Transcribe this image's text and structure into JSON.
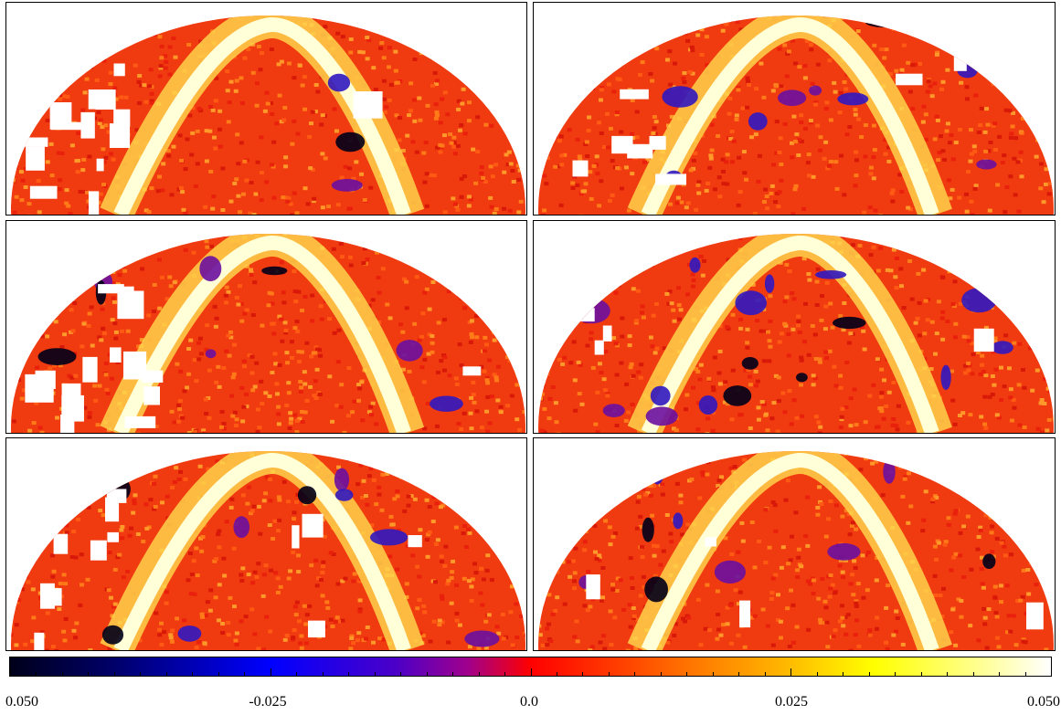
{
  "panels": [
    {
      "id": "top-left",
      "row": 1,
      "column": 1,
      "blue_patches": "few",
      "white_masked_regions": "many"
    },
    {
      "id": "top-right",
      "row": 1,
      "column": 2,
      "blue_patches": "some",
      "white_masked_regions": "some"
    },
    {
      "id": "middle-left",
      "row": 2,
      "column": 1,
      "blue_patches": "some",
      "white_masked_regions": "many"
    },
    {
      "id": "middle-right",
      "row": 2,
      "column": 2,
      "blue_patches": "many",
      "white_masked_regions": "few"
    },
    {
      "id": "bottom-left",
      "row": 3,
      "column": 1,
      "blue_patches": "some",
      "white_masked_regions": "many"
    },
    {
      "id": "bottom-right",
      "row": 3,
      "column": 2,
      "blue_patches": "some",
      "white_masked_regions": "few"
    }
  ],
  "colorbar": {
    "colors": [
      "#00001a",
      "#0000ff",
      "#a0008c",
      "#ff0000",
      "#ff7a00",
      "#ffff00",
      "#ffffff"
    ],
    "tick_labels": [
      "0.050",
      "-0.025",
      "0.0",
      "0.025",
      "0.050"
    ]
  }
}
